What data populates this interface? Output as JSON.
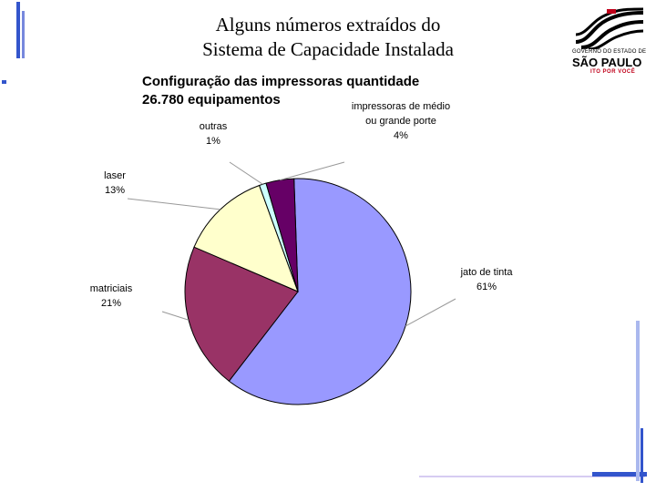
{
  "slide": {
    "title_line1": "Alguns números extraídos do",
    "title_line2": "Sistema de Capacidade Instalada"
  },
  "logo": {
    "top_text": "GOVERNO DO ESTADO DE",
    "main_text": "SÃO PAULO",
    "sub_text": "ITO POR VOCÊ"
  },
  "chart_data": {
    "type": "pie",
    "title": "Configuração das impressoras quantidade",
    "subtitle": "26.780 equipamentos",
    "legend": "none",
    "slices": [
      {
        "label": "jato de tinta",
        "lines": [
          "jato de tinta"
        ],
        "value": 61,
        "percent_label": "61%",
        "color": "#9999ff"
      },
      {
        "label": "matriciais",
        "lines": [
          "matriciais"
        ],
        "value": 21,
        "percent_label": "21%",
        "color": "#993366"
      },
      {
        "label": "laser",
        "lines": [
          "laser"
        ],
        "value": 13,
        "percent_label": "13%",
        "color": "#ffffcc"
      },
      {
        "label": "outras",
        "lines": [
          "outras"
        ],
        "value": 1,
        "percent_label": "1%",
        "color": "#ccffff"
      },
      {
        "label": "impressoras de médio ou grande porte",
        "lines": [
          "impressoras de médio",
          "ou grande porte"
        ],
        "value": 4,
        "percent_label": "4%",
        "color": "#660066"
      }
    ]
  },
  "colors": {
    "decoration_blue": "#3355cc",
    "decoration_light": "#aab8ee"
  }
}
